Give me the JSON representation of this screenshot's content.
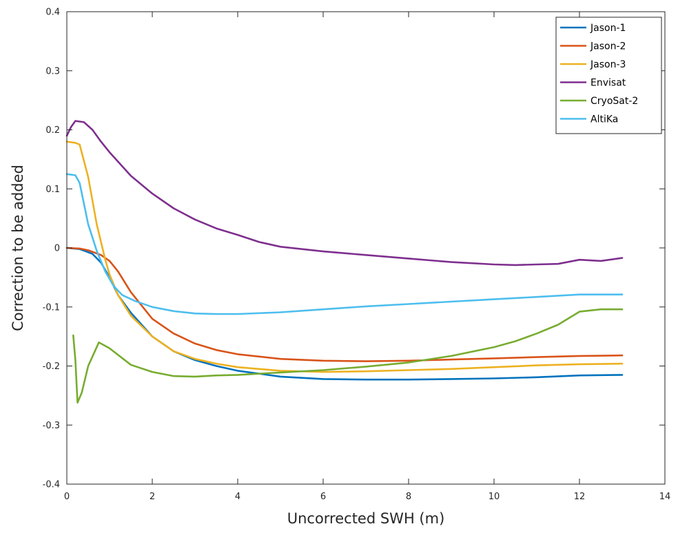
{
  "chart_data": {
    "type": "line",
    "title": "",
    "xlabel": "Uncorrected SWH (m)",
    "ylabel": "Correction to be added",
    "xlim": [
      0,
      14
    ],
    "ylim": [
      -0.4,
      0.4
    ],
    "xticks": [
      0,
      2,
      4,
      6,
      8,
      10,
      12,
      14
    ],
    "yticks": [
      -0.4,
      -0.3,
      -0.2,
      -0.1,
      0,
      0.1,
      0.2,
      0.3,
      0.4
    ],
    "xtick_labels": [
      "0",
      "2",
      "4",
      "6",
      "8",
      "10",
      "12",
      "14"
    ],
    "ytick_labels": [
      "-0.4",
      "-0.3",
      "-0.2",
      "-0.1",
      "0",
      "0.1",
      "0.2",
      "0.3",
      "0.4"
    ],
    "grid": false,
    "legend_position": "top-right",
    "series": [
      {
        "name": "Jason-1",
        "color": "#0072BD",
        "points": [
          [
            0,
            0
          ],
          [
            0.3,
            -0.002
          ],
          [
            0.6,
            -0.01
          ],
          [
            0.8,
            -0.025
          ],
          [
            1.0,
            -0.05
          ],
          [
            1.2,
            -0.08
          ],
          [
            1.5,
            -0.11
          ],
          [
            2.0,
            -0.15
          ],
          [
            2.5,
            -0.175
          ],
          [
            3.0,
            -0.19
          ],
          [
            3.5,
            -0.2
          ],
          [
            4.0,
            -0.208
          ],
          [
            5.0,
            -0.218
          ],
          [
            6.0,
            -0.222
          ],
          [
            7.0,
            -0.223
          ],
          [
            8.0,
            -0.223
          ],
          [
            9.0,
            -0.222
          ],
          [
            10.0,
            -0.221
          ],
          [
            11.0,
            -0.219
          ],
          [
            12.0,
            -0.216
          ],
          [
            13.0,
            -0.215
          ]
        ]
      },
      {
        "name": "Jason-2",
        "color": "#D95319",
        "points": [
          [
            0,
            0
          ],
          [
            0.3,
            -0.001
          ],
          [
            0.5,
            -0.004
          ],
          [
            0.8,
            -0.012
          ],
          [
            1.0,
            -0.022
          ],
          [
            1.2,
            -0.04
          ],
          [
            1.5,
            -0.075
          ],
          [
            2.0,
            -0.12
          ],
          [
            2.5,
            -0.145
          ],
          [
            3.0,
            -0.162
          ],
          [
            3.5,
            -0.173
          ],
          [
            4.0,
            -0.18
          ],
          [
            5.0,
            -0.188
          ],
          [
            6.0,
            -0.191
          ],
          [
            7.0,
            -0.192
          ],
          [
            8.0,
            -0.191
          ],
          [
            9.0,
            -0.189
          ],
          [
            10.0,
            -0.187
          ],
          [
            11.0,
            -0.185
          ],
          [
            12.0,
            -0.183
          ],
          [
            13.0,
            -0.182
          ]
        ]
      },
      {
        "name": "Jason-3",
        "color": "#EDB120",
        "points": [
          [
            0,
            0.18
          ],
          [
            0.2,
            0.178
          ],
          [
            0.3,
            0.175
          ],
          [
            0.5,
            0.12
          ],
          [
            0.7,
            0.04
          ],
          [
            0.9,
            -0.02
          ],
          [
            1.0,
            -0.045
          ],
          [
            1.2,
            -0.08
          ],
          [
            1.5,
            -0.115
          ],
          [
            2.0,
            -0.15
          ],
          [
            2.5,
            -0.175
          ],
          [
            3.0,
            -0.188
          ],
          [
            3.5,
            -0.196
          ],
          [
            4.0,
            -0.202
          ],
          [
            5.0,
            -0.208
          ],
          [
            6.0,
            -0.21
          ],
          [
            7.0,
            -0.209
          ],
          [
            8.0,
            -0.207
          ],
          [
            9.0,
            -0.205
          ],
          [
            10.0,
            -0.202
          ],
          [
            11.0,
            -0.199
          ],
          [
            12.0,
            -0.197
          ],
          [
            13.0,
            -0.196
          ]
        ]
      },
      {
        "name": "Envisat",
        "color": "#7E2F8E",
        "points": [
          [
            0,
            0.19
          ],
          [
            0.1,
            0.205
          ],
          [
            0.2,
            0.215
          ],
          [
            0.4,
            0.213
          ],
          [
            0.6,
            0.2
          ],
          [
            0.8,
            0.18
          ],
          [
            1.0,
            0.162
          ],
          [
            1.5,
            0.122
          ],
          [
            2.0,
            0.092
          ],
          [
            2.5,
            0.067
          ],
          [
            3.0,
            0.048
          ],
          [
            3.5,
            0.033
          ],
          [
            4.0,
            0.022
          ],
          [
            4.5,
            0.01
          ],
          [
            5.0,
            0.002
          ],
          [
            6.0,
            -0.006
          ],
          [
            7.0,
            -0.012
          ],
          [
            8.0,
            -0.018
          ],
          [
            9.0,
            -0.024
          ],
          [
            10.0,
            -0.028
          ],
          [
            10.5,
            -0.029
          ],
          [
            11.0,
            -0.028
          ],
          [
            11.5,
            -0.027
          ],
          [
            12.0,
            -0.02
          ],
          [
            12.5,
            -0.022
          ],
          [
            13.0,
            -0.017
          ]
        ]
      },
      {
        "name": "CryoSat-2",
        "color": "#77AC30",
        "points": [
          [
            0.15,
            -0.148
          ],
          [
            0.2,
            -0.19
          ],
          [
            0.25,
            -0.262
          ],
          [
            0.35,
            -0.245
          ],
          [
            0.5,
            -0.2
          ],
          [
            0.75,
            -0.16
          ],
          [
            1.0,
            -0.17
          ],
          [
            1.5,
            -0.198
          ],
          [
            2.0,
            -0.21
          ],
          [
            2.5,
            -0.217
          ],
          [
            3.0,
            -0.218
          ],
          [
            3.5,
            -0.216
          ],
          [
            4.0,
            -0.215
          ],
          [
            5.0,
            -0.211
          ],
          [
            6.0,
            -0.207
          ],
          [
            7.0,
            -0.201
          ],
          [
            8.0,
            -0.194
          ],
          [
            9.0,
            -0.183
          ],
          [
            10.0,
            -0.168
          ],
          [
            10.5,
            -0.158
          ],
          [
            11.0,
            -0.145
          ],
          [
            11.5,
            -0.13
          ],
          [
            12.0,
            -0.108
          ],
          [
            12.5,
            -0.104
          ],
          [
            13.0,
            -0.104
          ]
        ]
      },
      {
        "name": "AltiKa",
        "color": "#4DBEEE",
        "points": [
          [
            0,
            0.125
          ],
          [
            0.2,
            0.123
          ],
          [
            0.3,
            0.11
          ],
          [
            0.5,
            0.04
          ],
          [
            0.7,
            -0.005
          ],
          [
            0.9,
            -0.04
          ],
          [
            1.1,
            -0.065
          ],
          [
            1.3,
            -0.08
          ],
          [
            1.6,
            -0.09
          ],
          [
            2.0,
            -0.1
          ],
          [
            2.5,
            -0.107
          ],
          [
            3.0,
            -0.111
          ],
          [
            3.5,
            -0.112
          ],
          [
            4.0,
            -0.112
          ],
          [
            5.0,
            -0.109
          ],
          [
            6.0,
            -0.104
          ],
          [
            7.0,
            -0.099
          ],
          [
            8.0,
            -0.095
          ],
          [
            9.0,
            -0.091
          ],
          [
            10.0,
            -0.087
          ],
          [
            11.0,
            -0.083
          ],
          [
            12.0,
            -0.079
          ],
          [
            13.0,
            -0.079
          ]
        ]
      }
    ]
  }
}
